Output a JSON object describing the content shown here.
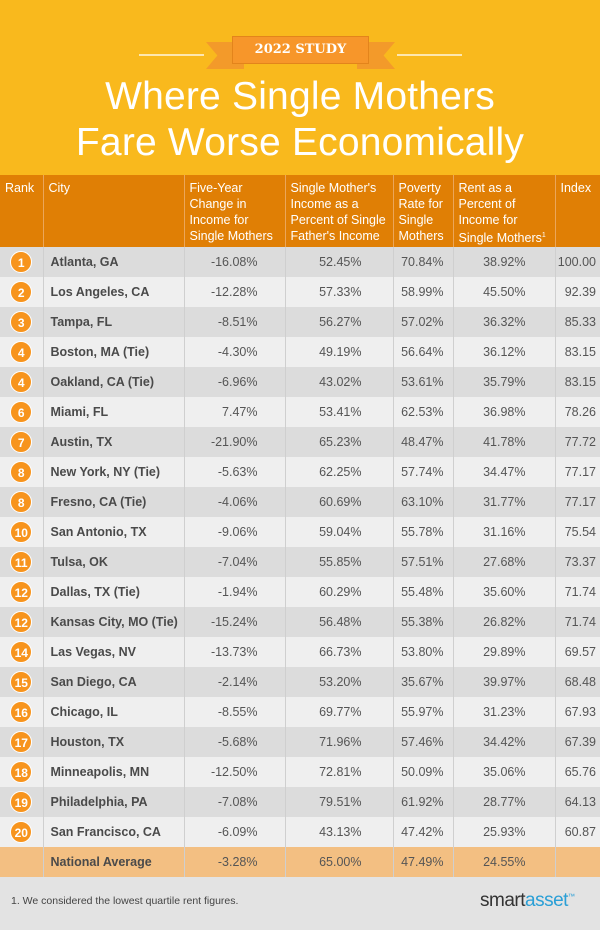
{
  "banner": "2022 STUDY",
  "title_line1": "Where Single Mothers",
  "title_line2": "Fare Worse Economically",
  "colors": {
    "hero": "#f9b91d",
    "header": "#e07f05",
    "badge": "#f7941d",
    "national_row": "#f3bf82"
  },
  "chart_data": {
    "type": "table",
    "columns": [
      "Rank",
      "City",
      "Five-Year Change in Income for Single Mothers",
      "Single Mother's Income as a Percent of Single Father's Income",
      "Poverty Rate for Single Mothers",
      "Rent as a Percent of Income for Single Mothers",
      "Index"
    ],
    "footnote_marker": "1",
    "rows": [
      [
        "1",
        "Atlanta, GA",
        "-16.08%",
        "52.45%",
        "70.84%",
        "38.92%",
        "100.00"
      ],
      [
        "2",
        "Los Angeles, CA",
        "-12.28%",
        "57.33%",
        "58.99%",
        "45.50%",
        "92.39"
      ],
      [
        "3",
        "Tampa, FL",
        "-8.51%",
        "56.27%",
        "57.02%",
        "36.32%",
        "85.33"
      ],
      [
        "4",
        "Boston, MA (Tie)",
        "-4.30%",
        "49.19%",
        "56.64%",
        "36.12%",
        "83.15"
      ],
      [
        "4",
        "Oakland, CA (Tie)",
        "-6.96%",
        "43.02%",
        "53.61%",
        "35.79%",
        "83.15"
      ],
      [
        "6",
        "Miami, FL",
        "7.47%",
        "53.41%",
        "62.53%",
        "36.98%",
        "78.26"
      ],
      [
        "7",
        "Austin, TX",
        "-21.90%",
        "65.23%",
        "48.47%",
        "41.78%",
        "77.72"
      ],
      [
        "8",
        "New York, NY (Tie)",
        "-5.63%",
        "62.25%",
        "57.74%",
        "34.47%",
        "77.17"
      ],
      [
        "8",
        "Fresno, CA (Tie)",
        "-4.06%",
        "60.69%",
        "63.10%",
        "31.77%",
        "77.17"
      ],
      [
        "10",
        "San Antonio, TX",
        "-9.06%",
        "59.04%",
        "55.78%",
        "31.16%",
        "75.54"
      ],
      [
        "11",
        "Tulsa, OK",
        "-7.04%",
        "55.85%",
        "57.51%",
        "27.68%",
        "73.37"
      ],
      [
        "12",
        "Dallas, TX (Tie)",
        "-1.94%",
        "60.29%",
        "55.48%",
        "35.60%",
        "71.74"
      ],
      [
        "12",
        "Kansas City, MO (Tie)",
        "-15.24%",
        "56.48%",
        "55.38%",
        "26.82%",
        "71.74"
      ],
      [
        "14",
        "Las Vegas, NV",
        "-13.73%",
        "66.73%",
        "53.80%",
        "29.89%",
        "69.57"
      ],
      [
        "15",
        "San Diego, CA",
        "-2.14%",
        "53.20%",
        "35.67%",
        "39.97%",
        "68.48"
      ],
      [
        "16",
        "Chicago, IL",
        "-8.55%",
        "69.77%",
        "55.97%",
        "31.23%",
        "67.93"
      ],
      [
        "17",
        "Houston, TX",
        "-5.68%",
        "71.96%",
        "57.46%",
        "34.42%",
        "67.39"
      ],
      [
        "18",
        "Minneapolis, MN",
        "-12.50%",
        "72.81%",
        "50.09%",
        "35.06%",
        "65.76"
      ],
      [
        "19",
        "Philadelphia, PA",
        "-7.08%",
        "79.51%",
        "61.92%",
        "28.77%",
        "64.13"
      ],
      [
        "20",
        "San Francisco, CA",
        "-6.09%",
        "43.13%",
        "47.42%",
        "25.93%",
        "60.87"
      ]
    ],
    "national_average": [
      "",
      "National Average",
      "-3.28%",
      "65.00%",
      "47.49%",
      "24.55%",
      ""
    ]
  },
  "footnote": "1. We considered the lowest quartile rent figures.",
  "logo": {
    "part1": "smart",
    "part2": "asset",
    "tm": "™"
  }
}
